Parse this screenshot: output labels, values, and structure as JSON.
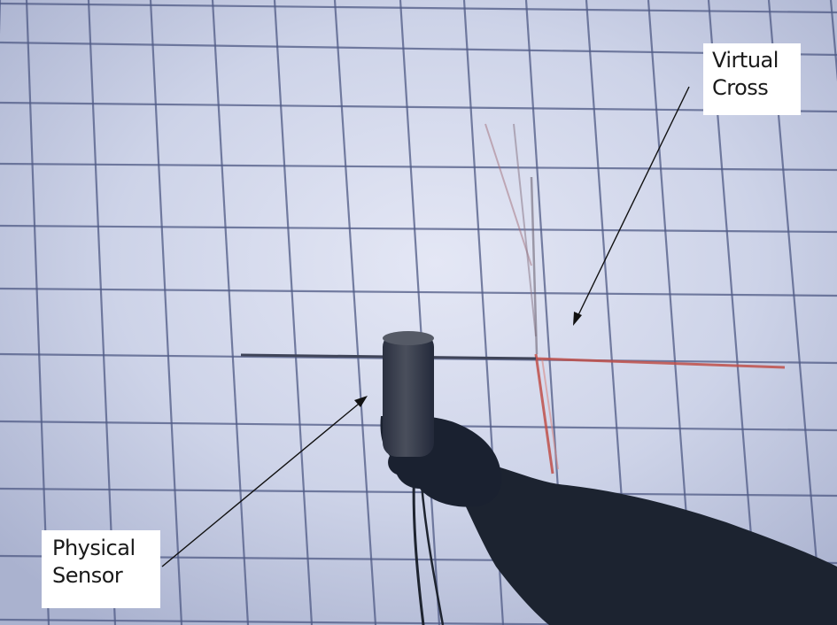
{
  "labels": {
    "virtual_cross": {
      "line1": "Virtual",
      "line2": "Cross"
    },
    "physical_sensor": {
      "line1": "Physical",
      "line2": "Sensor"
    }
  },
  "colors": {
    "screen_background": "#c9d0e4",
    "grid_line": "#4f5a85",
    "virtual_cross_red": "#c0504a",
    "virtual_cross_dark": "#3f4458",
    "silhouette": "#1c2330",
    "arrow": "#111111",
    "label_background": "#ffffff"
  }
}
